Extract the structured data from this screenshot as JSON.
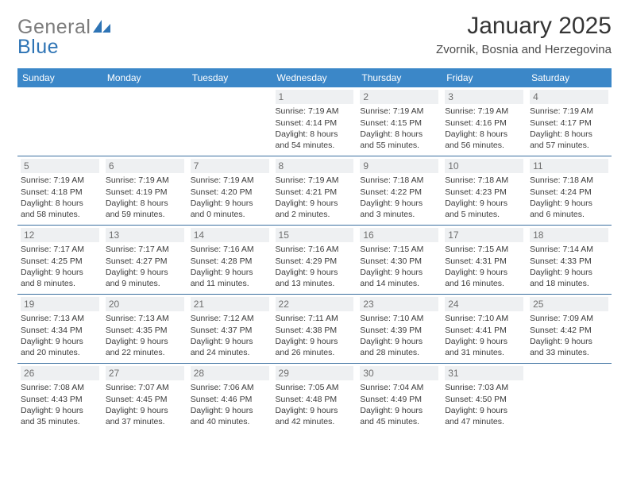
{
  "logo": {
    "word1": "General",
    "word2": "Blue"
  },
  "title": "January 2025",
  "location": "Zvornik, Bosnia and Herzegovina",
  "colors": {
    "header_bg": "#3b87c8",
    "header_fg": "#ffffff",
    "rule": "#3b6fa0",
    "daynum_bg": "#eef0f2",
    "daynum_fg": "#6e6e6e",
    "logo_gray": "#7c7c7c",
    "logo_blue": "#2e74b5",
    "body_text": "#3b3b3b"
  },
  "weekdays": [
    "Sunday",
    "Monday",
    "Tuesday",
    "Wednesday",
    "Thursday",
    "Friday",
    "Saturday"
  ],
  "weeks": [
    [
      null,
      null,
      null,
      {
        "day": "1",
        "sunrise": "7:19 AM",
        "sunset": "4:14 PM",
        "dl_h": "8",
        "dl_m": "54"
      },
      {
        "day": "2",
        "sunrise": "7:19 AM",
        "sunset": "4:15 PM",
        "dl_h": "8",
        "dl_m": "55"
      },
      {
        "day": "3",
        "sunrise": "7:19 AM",
        "sunset": "4:16 PM",
        "dl_h": "8",
        "dl_m": "56"
      },
      {
        "day": "4",
        "sunrise": "7:19 AM",
        "sunset": "4:17 PM",
        "dl_h": "8",
        "dl_m": "57"
      }
    ],
    [
      {
        "day": "5",
        "sunrise": "7:19 AM",
        "sunset": "4:18 PM",
        "dl_h": "8",
        "dl_m": "58"
      },
      {
        "day": "6",
        "sunrise": "7:19 AM",
        "sunset": "4:19 PM",
        "dl_h": "8",
        "dl_m": "59"
      },
      {
        "day": "7",
        "sunrise": "7:19 AM",
        "sunset": "4:20 PM",
        "dl_h": "9",
        "dl_m": "0"
      },
      {
        "day": "8",
        "sunrise": "7:19 AM",
        "sunset": "4:21 PM",
        "dl_h": "9",
        "dl_m": "2"
      },
      {
        "day": "9",
        "sunrise": "7:18 AM",
        "sunset": "4:22 PM",
        "dl_h": "9",
        "dl_m": "3"
      },
      {
        "day": "10",
        "sunrise": "7:18 AM",
        "sunset": "4:23 PM",
        "dl_h": "9",
        "dl_m": "5"
      },
      {
        "day": "11",
        "sunrise": "7:18 AM",
        "sunset": "4:24 PM",
        "dl_h": "9",
        "dl_m": "6"
      }
    ],
    [
      {
        "day": "12",
        "sunrise": "7:17 AM",
        "sunset": "4:25 PM",
        "dl_h": "9",
        "dl_m": "8"
      },
      {
        "day": "13",
        "sunrise": "7:17 AM",
        "sunset": "4:27 PM",
        "dl_h": "9",
        "dl_m": "9"
      },
      {
        "day": "14",
        "sunrise": "7:16 AM",
        "sunset": "4:28 PM",
        "dl_h": "9",
        "dl_m": "11"
      },
      {
        "day": "15",
        "sunrise": "7:16 AM",
        "sunset": "4:29 PM",
        "dl_h": "9",
        "dl_m": "13"
      },
      {
        "day": "16",
        "sunrise": "7:15 AM",
        "sunset": "4:30 PM",
        "dl_h": "9",
        "dl_m": "14"
      },
      {
        "day": "17",
        "sunrise": "7:15 AM",
        "sunset": "4:31 PM",
        "dl_h": "9",
        "dl_m": "16"
      },
      {
        "day": "18",
        "sunrise": "7:14 AM",
        "sunset": "4:33 PM",
        "dl_h": "9",
        "dl_m": "18"
      }
    ],
    [
      {
        "day": "19",
        "sunrise": "7:13 AM",
        "sunset": "4:34 PM",
        "dl_h": "9",
        "dl_m": "20"
      },
      {
        "day": "20",
        "sunrise": "7:13 AM",
        "sunset": "4:35 PM",
        "dl_h": "9",
        "dl_m": "22"
      },
      {
        "day": "21",
        "sunrise": "7:12 AM",
        "sunset": "4:37 PM",
        "dl_h": "9",
        "dl_m": "24"
      },
      {
        "day": "22",
        "sunrise": "7:11 AM",
        "sunset": "4:38 PM",
        "dl_h": "9",
        "dl_m": "26"
      },
      {
        "day": "23",
        "sunrise": "7:10 AM",
        "sunset": "4:39 PM",
        "dl_h": "9",
        "dl_m": "28"
      },
      {
        "day": "24",
        "sunrise": "7:10 AM",
        "sunset": "4:41 PM",
        "dl_h": "9",
        "dl_m": "31"
      },
      {
        "day": "25",
        "sunrise": "7:09 AM",
        "sunset": "4:42 PM",
        "dl_h": "9",
        "dl_m": "33"
      }
    ],
    [
      {
        "day": "26",
        "sunrise": "7:08 AM",
        "sunset": "4:43 PM",
        "dl_h": "9",
        "dl_m": "35"
      },
      {
        "day": "27",
        "sunrise": "7:07 AM",
        "sunset": "4:45 PM",
        "dl_h": "9",
        "dl_m": "37"
      },
      {
        "day": "28",
        "sunrise": "7:06 AM",
        "sunset": "4:46 PM",
        "dl_h": "9",
        "dl_m": "40"
      },
      {
        "day": "29",
        "sunrise": "7:05 AM",
        "sunset": "4:48 PM",
        "dl_h": "9",
        "dl_m": "42"
      },
      {
        "day": "30",
        "sunrise": "7:04 AM",
        "sunset": "4:49 PM",
        "dl_h": "9",
        "dl_m": "45"
      },
      {
        "day": "31",
        "sunrise": "7:03 AM",
        "sunset": "4:50 PM",
        "dl_h": "9",
        "dl_m": "47"
      },
      null
    ]
  ],
  "labels": {
    "sunrise": "Sunrise: ",
    "sunset": "Sunset: ",
    "daylight": "Daylight: ",
    "hours_and": " hours\nand ",
    "minutes": " minutes."
  }
}
